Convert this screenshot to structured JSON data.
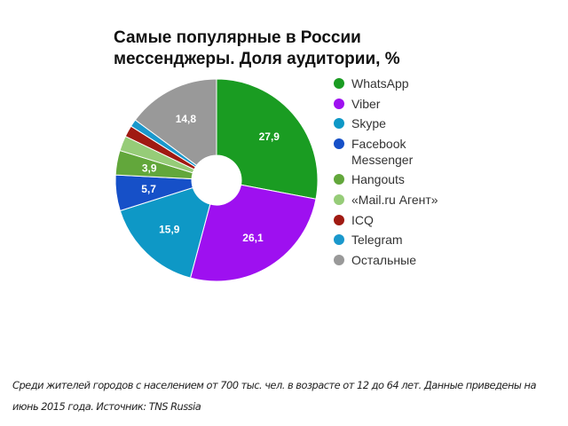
{
  "chart_data": {
    "type": "pie",
    "style": "donut",
    "title": "Самые популярные в России мессенджеры. Доля аудитории, %",
    "categories": [
      "WhatsApp",
      "Viber",
      "Skype",
      "Facebook Messenger",
      "Hangouts",
      "«Mail.ru Агент»",
      "ICQ",
      "Telegram",
      "Остальные"
    ],
    "values": [
      27.9,
      26.1,
      15.9,
      5.7,
      3.9,
      2.4,
      1.8,
      1.2,
      14.8
    ],
    "data_labels": [
      "27,9",
      "26,1",
      "15,9",
      "5,7",
      "3,9",
      "",
      "",
      "",
      "14,8"
    ],
    "colors": [
      "#1a9c22",
      "#9e10f0",
      "#0e98c6",
      "#1650c8",
      "#62a73b",
      "#96cc78",
      "#a01a12",
      "#1a98cc",
      "#999999"
    ],
    "legend": "right"
  },
  "note": "Среди жителей городов с населением от 700 тыс. чел. в возрасте от 12 до 64 лет. Данные приведены на июнь 2015 года. Источник: TNS Russia"
}
